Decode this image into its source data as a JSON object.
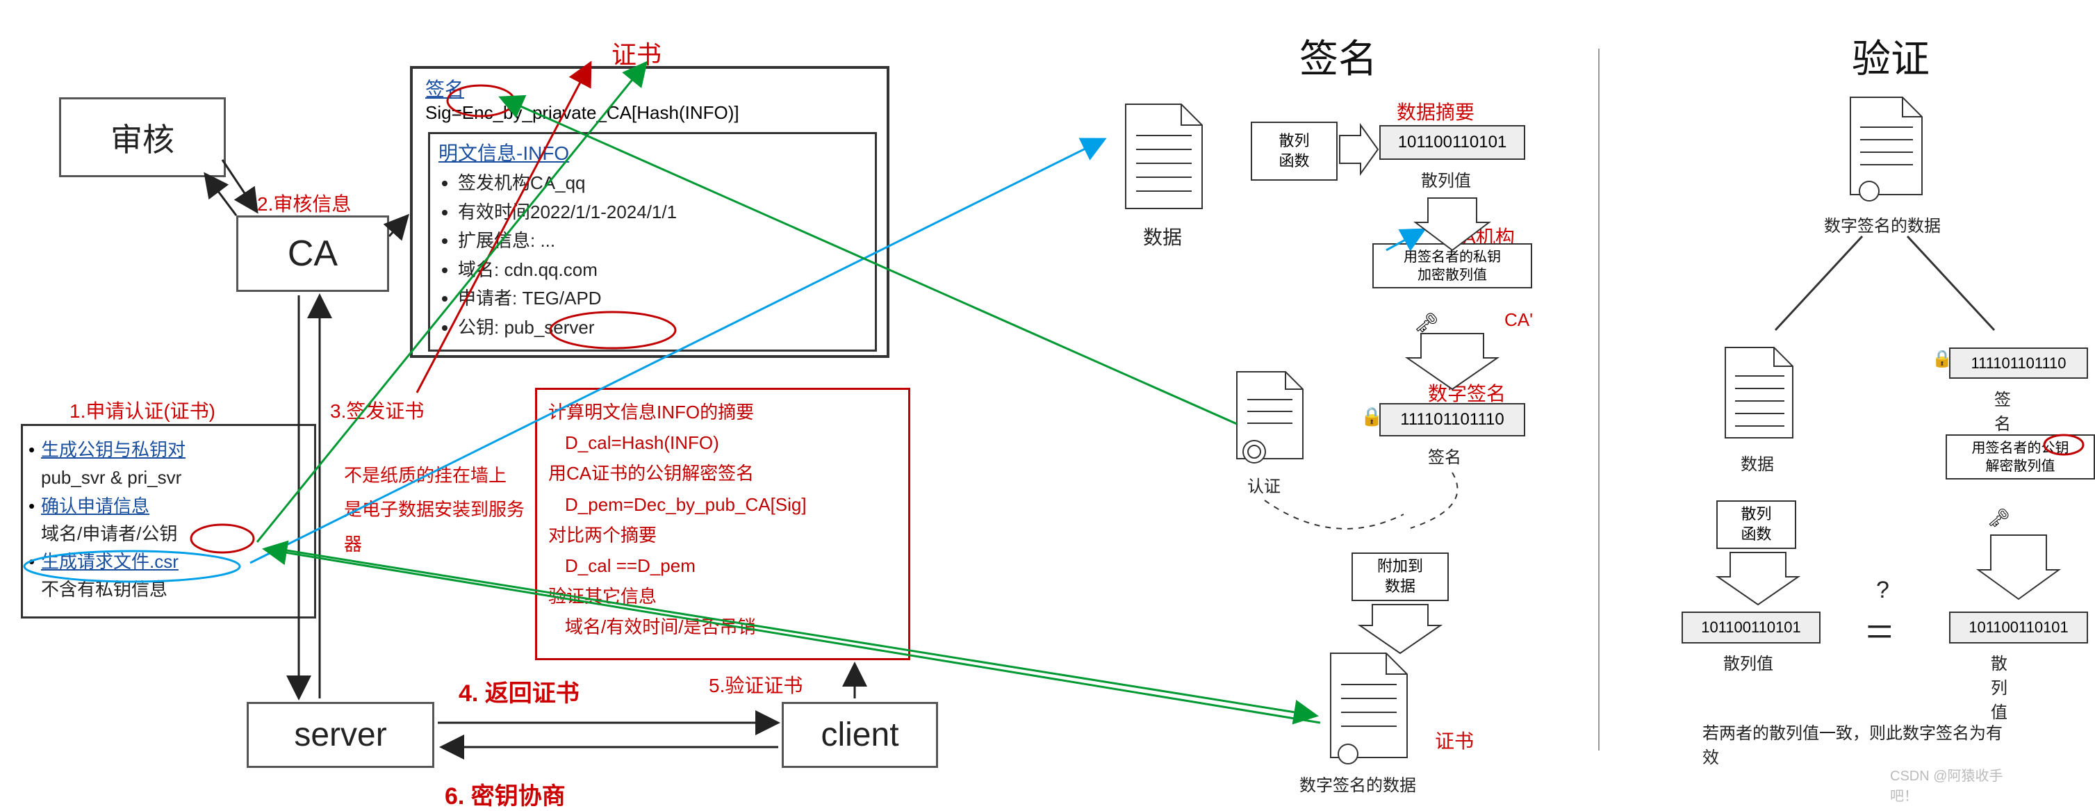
{
  "colors": {
    "red": "#c00000",
    "blue": "#1a4fa0",
    "black": "#222222",
    "green": "#009933",
    "arrow_blue": "#00a0e9",
    "box_border": "#555555",
    "gray": "#999999",
    "circle_red": "#cc0000"
  },
  "left": {
    "audit_box": "审核",
    "ca_box": "CA",
    "server_box": "server",
    "client_box": "client",
    "step1": "1.申请认证(证书)",
    "step2": "2.审核信息",
    "step3": "3.签发证书",
    "step4": "4. 返回证书",
    "step5": "5.验证证书",
    "step6": "6. 密钥协商",
    "cert_title": "证书",
    "sig_title": "签名",
    "sig_formula": "Sig=Enc_by_priavate_CA[Hash(INFO)]",
    "info_title": "明文信息-INFO",
    "info_bullets": [
      "签发机构CA_qq",
      "有效时间2022/1/1-2024/1/1",
      "扩展信息: ...",
      "域名: cdn.qq.com",
      "申请者: TEG/APD",
      "公钥: pub_server"
    ],
    "apply_bullets": [
      {
        "t": "生成公钥与私钥对",
        "link": true
      },
      {
        "t": "pub_svr & pri_svr",
        "link": false,
        "plain": true
      },
      {
        "t": "确认申请信息",
        "link": true
      },
      {
        "t": "域名/申请者/公钥",
        "link": false,
        "plain": true,
        "circled": "公钥"
      },
      {
        "t": "生成请求文件.csr",
        "link": true
      },
      {
        "t": "不含有私钥信息",
        "link": false,
        "plain": true
      }
    ],
    "red_note": "不是纸质的挂在墙上\n是电子数据安装到服务器",
    "verify_box": [
      "计算明文信息INFO的摘要",
      "  D_cal=Hash(INFO)",
      "用CA证书的公钥解密签名",
      "  D_pem=Dec_by_pub_CA[Sig]",
      "对比两个摘要",
      "  D_cal ==D_pem",
      "验证其它信息",
      "  域名/有效时间/是否吊销"
    ]
  },
  "middle": {
    "title": "签名",
    "hash_func": "散列\n函数",
    "digest_label": "数据摘要",
    "hash_value": "101100110101",
    "hash_value_lbl": "散列值",
    "data_lbl": "数据",
    "ca_org": "CA机构",
    "encrypt_note": "用签名者的私钥\n加密散列值",
    "ca_tick": "CA'",
    "sig_lbl": "数字签名",
    "sig_value": "111101101110",
    "sig_value_lbl": "签名",
    "auth_lbl": "认证",
    "append": "附加到\n数据",
    "cert_lbl": "证书",
    "signed_data": "数字签名的数据"
  },
  "right": {
    "title": "验证",
    "signed_data": "数字签名的数据",
    "data_lbl": "数据",
    "sig_value": "111101101110",
    "sig_lbl": "签名",
    "decrypt_note": "用签名者的公钥\n解密散列值",
    "hash_func": "散列\n函数",
    "hash_left": "101100110101",
    "hash_left_lbl": "散列值",
    "hash_right": "101100110101",
    "hash_right_lbl": "散列值",
    "question": "?",
    "equals": "=",
    "conclusion": "若两者的散列值一致，则此数字签名为有效"
  },
  "watermark": "CSDN @阿猿收手吧！"
}
